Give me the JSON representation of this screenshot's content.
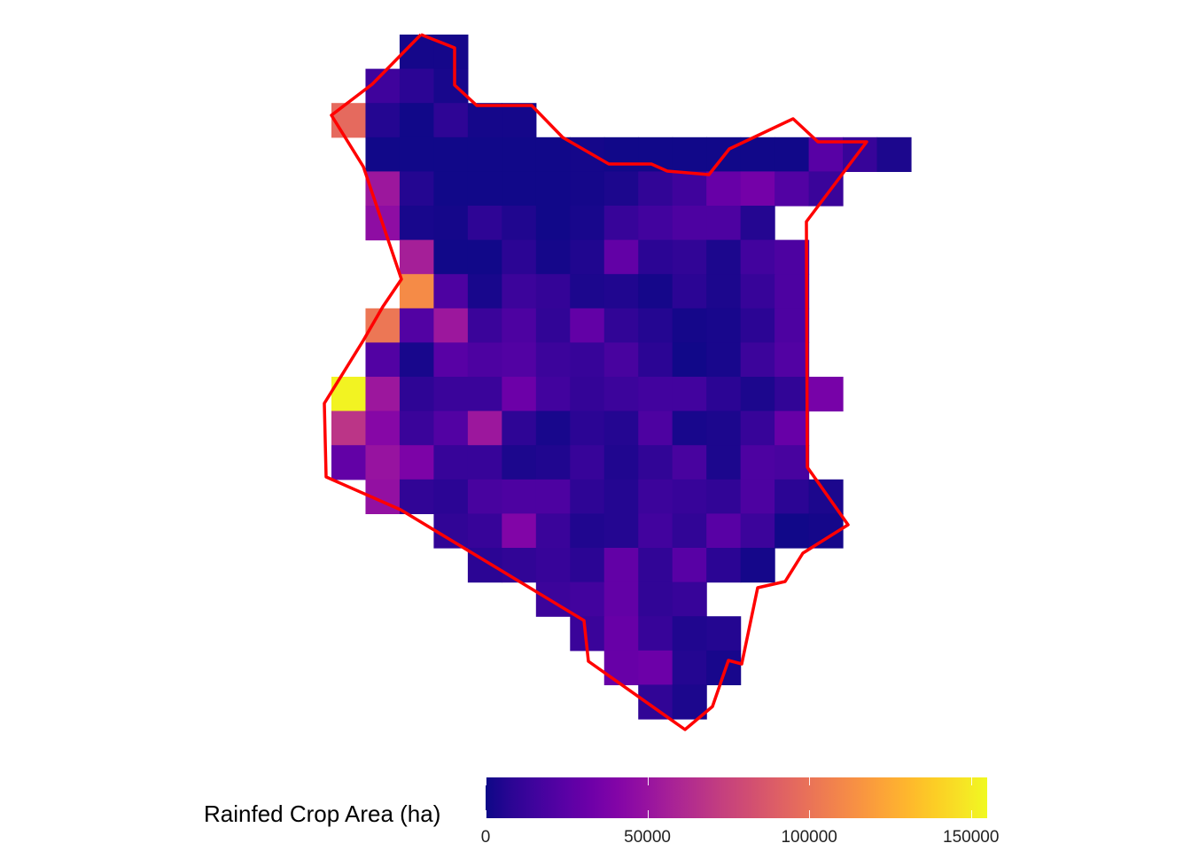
{
  "map": {
    "colorscale": [
      "#0d0887",
      "#2c0594",
      "#43039e",
      "#5901a5",
      "#6e00a8",
      "#8305a7",
      "#9511a1",
      "#a72197",
      "#b6308b",
      "#c5407e",
      "#d14e72",
      "#dd5e66",
      "#e76e5b",
      "#f07f4f",
      "#f79044",
      "#fca338",
      "#feb72d",
      "#fccd25",
      "#f7e225",
      "#f0f921"
    ],
    "outline_color": "#ff0000",
    "rows": [
      {
        "row": 0,
        "start": 2,
        "values": [
          2000,
          2000
        ]
      },
      {
        "row": 1,
        "start": 1,
        "values": [
          15000,
          8000,
          3000
        ]
      },
      {
        "row": 2,
        "start": 0,
        "values": [
          96000,
          6000,
          1000,
          9000,
          2000,
          2000
        ]
      },
      {
        "row": 3,
        "start": 1,
        "values": [
          1000,
          1000,
          1000,
          1000,
          1000,
          1000,
          2000,
          1000,
          1000,
          1000,
          1000,
          1000,
          1000,
          24000,
          12000,
          4000
        ]
      },
      {
        "row": 4,
        "start": 1,
        "values": [
          52000,
          6000,
          1000,
          1000,
          1000,
          1000,
          2000,
          4000,
          10000,
          15000,
          30000,
          35000,
          22000,
          13000
        ]
      },
      {
        "row": 5,
        "start": 1,
        "values": [
          46000,
          3000,
          2000,
          9000,
          5000,
          1000,
          3000,
          12000,
          16000,
          20000,
          20000,
          6000
        ]
      },
      {
        "row": 6,
        "start": 2,
        "values": [
          56000,
          1000,
          1000,
          8000,
          2000,
          5000,
          28000,
          8000,
          10000,
          4000,
          16000,
          20000
        ]
      },
      {
        "row": 7,
        "start": 2,
        "values": [
          112000,
          20000,
          3000,
          14000,
          11000,
          4000,
          5000,
          2000,
          8000,
          4000,
          12000,
          20000
        ]
      },
      {
        "row": 8,
        "start": 1,
        "values": [
          102000,
          22000,
          52000,
          13000,
          20000,
          10000,
          28000,
          10000,
          6000,
          2000,
          3000,
          8000,
          20000
        ]
      },
      {
        "row": 9,
        "start": 1,
        "values": [
          22000,
          3000,
          24000,
          20000,
          22000,
          14000,
          12000,
          18000,
          8000,
          1000,
          3000,
          14000,
          22000
        ]
      },
      {
        "row": 10,
        "start": 0,
        "values": [
          153000,
          52000,
          9000,
          13000,
          13000,
          32000,
          16000,
          11000,
          14000,
          16000,
          16000,
          8000,
          4000,
          10000,
          36000
        ]
      },
      {
        "row": 11,
        "start": 0,
        "values": [
          68000,
          42000,
          13000,
          22000,
          52000,
          9000,
          3000,
          8000,
          6000,
          20000,
          3000,
          4000,
          12000,
          30000
        ]
      },
      {
        "row": 12,
        "start": 0,
        "values": [
          28000,
          50000,
          38000,
          12000,
          12000,
          4000,
          5000,
          12000,
          5000,
          10000,
          18000,
          4000,
          20000,
          18000
        ]
      },
      {
        "row": 13,
        "start": 1,
        "values": [
          48000,
          10000,
          8000,
          18000,
          20000,
          20000,
          9000,
          6000,
          14000,
          12000,
          10000,
          20000,
          8000,
          4000
        ]
      },
      {
        "row": 14,
        "start": 3,
        "values": [
          10000,
          12000,
          40000,
          13000,
          5000,
          6000,
          16000,
          10000,
          24000,
          14000,
          1000,
          2000
        ]
      },
      {
        "row": 15,
        "start": 4,
        "values": [
          8000,
          10000,
          12000,
          8000,
          28000,
          10000,
          24000,
          8000,
          2000
        ]
      },
      {
        "row": 16,
        "start": 6,
        "values": [
          14000,
          16000,
          28000,
          10000,
          12000
        ]
      },
      {
        "row": 17,
        "start": 7,
        "values": [
          13000,
          30000,
          12000,
          5000,
          6000
        ]
      },
      {
        "row": 18,
        "start": 8,
        "values": [
          30000,
          32000,
          6000,
          3000
        ]
      },
      {
        "row": 19,
        "start": 9,
        "values": [
          10000,
          4000
        ]
      }
    ],
    "outline": [
      [
        475,
        39
      ],
      [
        513,
        54
      ],
      [
        513,
        96
      ],
      [
        538,
        119
      ],
      [
        600,
        119
      ],
      [
        635,
        155
      ],
      [
        687,
        185
      ],
      [
        735,
        185
      ],
      [
        753,
        193
      ],
      [
        800,
        197
      ],
      [
        823,
        168
      ],
      [
        895,
        134
      ],
      [
        923,
        160
      ],
      [
        978,
        160
      ],
      [
        910,
        250
      ],
      [
        911,
        527
      ],
      [
        957,
        592
      ],
      [
        906,
        624
      ],
      [
        886,
        656
      ],
      [
        855,
        663
      ],
      [
        837,
        749
      ],
      [
        822,
        745
      ],
      [
        804,
        797
      ],
      [
        773,
        823
      ],
      [
        664,
        746
      ],
      [
        659,
        700
      ],
      [
        452,
        575
      ],
      [
        368,
        538
      ],
      [
        366,
        455
      ],
      [
        410,
        384
      ],
      [
        432,
        346
      ],
      [
        453,
        315
      ],
      [
        410,
        188
      ],
      [
        374,
        130
      ],
      [
        420,
        95
      ],
      [
        475,
        39
      ]
    ]
  },
  "legend": {
    "title": "Rainfed Crop Area (ha)",
    "min": 0,
    "max": 155000,
    "ticks": [
      {
        "value": 0,
        "label": "0"
      },
      {
        "value": 50000,
        "label": "50000"
      },
      {
        "value": 100000,
        "label": "100000"
      },
      {
        "value": 150000,
        "label": "150000"
      }
    ]
  }
}
